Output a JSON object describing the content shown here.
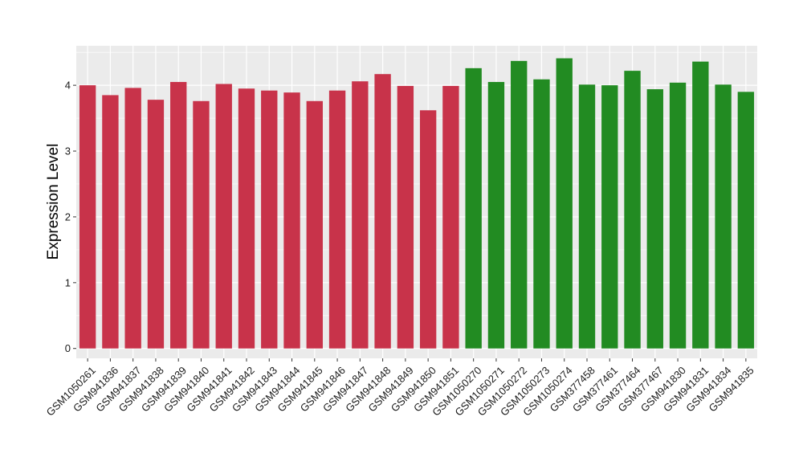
{
  "chart_data": {
    "type": "bar",
    "title": "",
    "xlabel": "",
    "ylabel": "Expression Level",
    "ylim": [
      -0.15,
      4.6
    ],
    "yticks": [
      0,
      1,
      2,
      3,
      4
    ],
    "grid": true,
    "legend": "none",
    "panel_background": "#ebebeb",
    "grid_color": "#ffffff",
    "categories": [
      "GSM1050261",
      "GSM941836",
      "GSM941837",
      "GSM941838",
      "GSM941839",
      "GSM941840",
      "GSM941841",
      "GSM941842",
      "GSM941843",
      "GSM941844",
      "GSM941845",
      "GSM941846",
      "GSM941847",
      "GSM941848",
      "GSM941849",
      "GSM941850",
      "GSM941851",
      "GSM1050270",
      "GSM1050271",
      "GSM1050272",
      "GSM1050273",
      "GSM1050274",
      "GSM377458",
      "GSM377461",
      "GSM377464",
      "GSM377467",
      "GSM941830",
      "GSM941831",
      "GSM941834",
      "GSM941835"
    ],
    "values": [
      4.0,
      3.85,
      3.96,
      3.78,
      4.05,
      3.76,
      4.02,
      3.95,
      3.92,
      3.89,
      3.76,
      3.92,
      4.06,
      4.17,
      3.99,
      3.62,
      3.99,
      4.26,
      4.05,
      4.37,
      4.09,
      4.41,
      4.01,
      4.0,
      4.22,
      3.94,
      4.04,
      4.36,
      4.01,
      3.9
    ],
    "bar_colors": [
      "#c8334a",
      "#c8334a",
      "#c8334a",
      "#c8334a",
      "#c8334a",
      "#c8334a",
      "#c8334a",
      "#c8334a",
      "#c8334a",
      "#c8334a",
      "#c8334a",
      "#c8334a",
      "#c8334a",
      "#c8334a",
      "#c8334a",
      "#c8334a",
      "#c8334a",
      "#228b22",
      "#228b22",
      "#228b22",
      "#228b22",
      "#228b22",
      "#228b22",
      "#228b22",
      "#228b22",
      "#228b22",
      "#228b22",
      "#228b22",
      "#228b22",
      "#228b22"
    ]
  }
}
